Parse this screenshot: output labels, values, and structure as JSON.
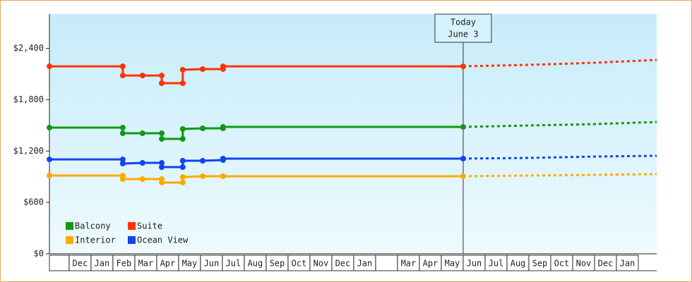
{
  "chart_data": {
    "type": "line",
    "x": [
      0.1,
      3.45,
      3.45,
      4.35,
      5.23,
      5.23,
      6.19,
      6.19,
      7.1,
      8.03,
      8.03,
      19.0
    ],
    "forecast_x": [
      19.0,
      22,
      25,
      27.84
    ],
    "xlim": [
      0.1,
      27.84
    ],
    "categories": [
      null,
      "Dec",
      "Jan",
      "Feb",
      "Mar",
      "Apr",
      "May",
      "Jun",
      "Jul",
      "Aug",
      "Sep",
      "Oct",
      "Nov",
      "Dec",
      "Jan",
      null,
      "Mar",
      "Apr",
      "May",
      "Jun",
      "Jul",
      "Aug",
      "Sep",
      "Oct",
      "Nov",
      "Dec",
      "Jan"
    ],
    "ylim": [
      0,
      2800
    ],
    "yticks": [
      {
        "value": 0,
        "label": "$0"
      },
      {
        "value": 600,
        "label": "$600"
      },
      {
        "value": 1200,
        "label": "$1,200"
      },
      {
        "value": 1800,
        "label": "$1,800"
      },
      {
        "value": 2400,
        "label": "$2,400"
      }
    ],
    "series": [
      {
        "name": "Balcony",
        "color": "#119911",
        "values": [
          1474,
          1474,
          1408,
          1408,
          1408,
          1342,
          1342,
          1458,
          1466,
          1466,
          1482,
          1482
        ],
        "forecast_values": [
          1482,
          1499,
          1515,
          1540
        ]
      },
      {
        "name": "Suite",
        "color": "#ff3300",
        "values": [
          2190,
          2190,
          2083,
          2083,
          2083,
          1993,
          1993,
          2150,
          2158,
          2158,
          2190,
          2190
        ],
        "forecast_values": [
          2190,
          2207,
          2232,
          2265
        ]
      },
      {
        "name": "Interior",
        "color": "#ffaa00",
        "values": [
          914,
          914,
          873,
          873,
          873,
          832,
          832,
          898,
          906,
          906,
          906,
          906
        ],
        "forecast_values": [
          906,
          914,
          922,
          931
        ]
      },
      {
        "name": "Ocean View",
        "color": "#1144ee",
        "values": [
          1103,
          1103,
          1054,
          1062,
          1062,
          1013,
          1013,
          1087,
          1087,
          1095,
          1112,
          1112
        ],
        "forecast_values": [
          1112,
          1120,
          1136,
          1145
        ]
      }
    ],
    "annotation": {
      "lines": [
        "Today",
        "June 3"
      ],
      "x": 19.0
    }
  }
}
